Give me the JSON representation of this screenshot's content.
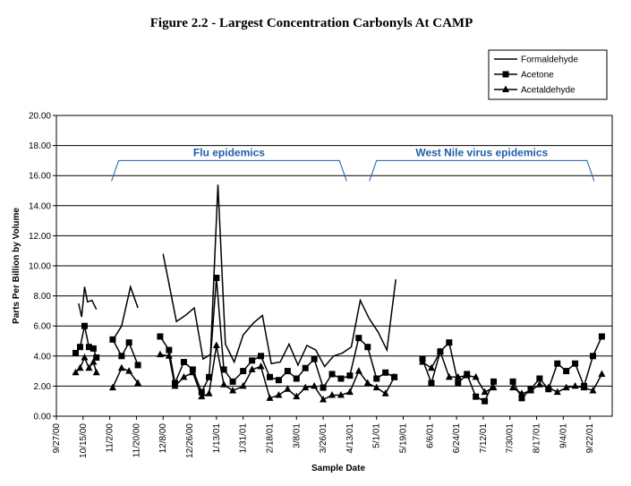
{
  "chart_data": {
    "type": "line",
    "title": "Figure 2.2 - Largest Concentration Carbonyls At CAMP",
    "xlabel": "Sample Date",
    "ylabel": "Parts Per Billion by Volume",
    "ylim": [
      0,
      20
    ],
    "yticks": [
      "0.00",
      "2.00",
      "4.00",
      "6.00",
      "8.00",
      "10.00",
      "12.00",
      "14.00",
      "16.00",
      "18.00",
      "20.00"
    ],
    "xlim": [
      "2000-09-27",
      "2001-10-07"
    ],
    "xticks": [
      {
        "label": "9/27/00",
        "date": "2000-09-27"
      },
      {
        "label": "10/15/00",
        "date": "2000-10-15"
      },
      {
        "label": "11/2/00",
        "date": "2000-11-02"
      },
      {
        "label": "11/20/00",
        "date": "2000-11-20"
      },
      {
        "label": "12/8/00",
        "date": "2000-12-08"
      },
      {
        "label": "12/26/00",
        "date": "2000-12-26"
      },
      {
        "label": "1/13/01",
        "date": "2001-01-13"
      },
      {
        "label": "1/31/01",
        "date": "2001-01-31"
      },
      {
        "label": "2/18/01",
        "date": "2001-02-18"
      },
      {
        "label": "3/8/01",
        "date": "2001-03-08"
      },
      {
        "label": "3/26/01",
        "date": "2001-03-26"
      },
      {
        "label": "4/13/01",
        "date": "2001-04-13"
      },
      {
        "label": "5/1/01",
        "date": "2001-05-01"
      },
      {
        "label": "5/19/01",
        "date": "2001-05-19"
      },
      {
        "label": "6/6/01",
        "date": "2001-06-06"
      },
      {
        "label": "6/24/01",
        "date": "2001-06-24"
      },
      {
        "label": "7/12/01",
        "date": "2001-07-12"
      },
      {
        "label": "7/30/01",
        "date": "2001-07-30"
      },
      {
        "label": "8/17/01",
        "date": "2001-08-17"
      },
      {
        "label": "9/4/01",
        "date": "2001-09-04"
      },
      {
        "label": "9/22/01",
        "date": "2001-09-22"
      }
    ],
    "grid": {
      "horizontal": true,
      "vertical": false
    },
    "legend": "top-right",
    "series": [
      {
        "name": "Formaldehyde",
        "marker": "none",
        "segments": [
          [
            [
              "2000-10-12",
              7.5
            ],
            [
              "2000-10-14",
              6.6
            ],
            [
              "2000-10-16",
              8.6
            ],
            [
              "2000-10-18",
              7.6
            ],
            [
              "2000-10-21",
              7.7
            ],
            [
              "2000-10-24",
              7.1
            ]
          ],
          [
            [
              "2000-11-05",
              5.2
            ],
            [
              "2000-11-10",
              6.0
            ],
            [
              "2000-11-16",
              8.6
            ],
            [
              "2000-11-21",
              7.2
            ]
          ],
          [
            [
              "2000-12-08",
              10.8
            ],
            [
              "2000-12-11",
              9.3
            ],
            [
              "2000-12-17",
              6.3
            ],
            [
              "2000-12-23",
              6.7
            ],
            [
              "2000-12-29",
              7.2
            ],
            [
              "2001-01-04",
              3.8
            ],
            [
              "2001-01-09",
              4.1
            ],
            [
              "2001-01-14",
              15.4
            ],
            [
              "2001-01-19",
              4.8
            ],
            [
              "2001-01-25",
              3.6
            ],
            [
              "2001-01-31",
              5.4
            ],
            [
              "2001-02-07",
              6.2
            ],
            [
              "2001-02-13",
              6.7
            ],
            [
              "2001-02-19",
              3.5
            ],
            [
              "2001-02-25",
              3.6
            ],
            [
              "2001-03-03",
              4.8
            ],
            [
              "2001-03-09",
              3.4
            ],
            [
              "2001-03-15",
              4.7
            ],
            [
              "2001-03-21",
              4.4
            ],
            [
              "2001-03-27",
              3.3
            ],
            [
              "2001-04-02",
              4.0
            ],
            [
              "2001-04-08",
              4.2
            ],
            [
              "2001-04-14",
              4.6
            ],
            [
              "2001-04-20",
              7.7
            ],
            [
              "2001-04-26",
              6.5
            ],
            [
              "2001-05-02",
              5.6
            ],
            [
              "2001-05-08",
              4.4
            ],
            [
              "2001-05-14",
              9.1
            ]
          ]
        ],
        "_comment": ""
      },
      {
        "name": "Acetone",
        "marker": "square",
        "segments": [
          [
            [
              "2000-10-10",
              4.2
            ],
            [
              "2000-10-13",
              4.6
            ],
            [
              "2000-10-16",
              6.0
            ],
            [
              "2000-10-19",
              4.6
            ],
            [
              "2000-10-22",
              4.5
            ],
            [
              "2000-10-24",
              3.9
            ]
          ],
          [
            [
              "2000-11-04",
              5.1
            ],
            [
              "2000-11-10",
              4.0
            ],
            [
              "2000-11-15",
              4.9
            ],
            [
              "2000-11-21",
              3.4
            ]
          ],
          [
            [
              "2000-12-06",
              5.3
            ],
            [
              "2000-12-12",
              4.4
            ],
            [
              "2000-12-16",
              2.2
            ],
            [
              "2000-12-22",
              3.6
            ],
            [
              "2000-12-28",
              3.1
            ],
            [
              "2001-01-03",
              1.6
            ],
            [
              "2001-01-08",
              2.6
            ],
            [
              "2001-01-13",
              9.2
            ],
            [
              "2001-01-18",
              3.1
            ],
            [
              "2001-01-24",
              2.3
            ],
            [
              "2001-01-31",
              3.0
            ],
            [
              "2001-02-06",
              3.7
            ],
            [
              "2001-02-12",
              4.0
            ],
            [
              "2001-02-18",
              2.6
            ],
            [
              "2001-02-24",
              2.4
            ],
            [
              "2001-03-02",
              3.0
            ],
            [
              "2001-03-08",
              2.5
            ],
            [
              "2001-03-14",
              3.2
            ],
            [
              "2001-03-20",
              3.8
            ],
            [
              "2001-03-26",
              1.9
            ],
            [
              "2001-04-01",
              2.8
            ],
            [
              "2001-04-07",
              2.5
            ],
            [
              "2001-04-13",
              2.7
            ],
            [
              "2001-04-19",
              5.2
            ],
            [
              "2001-04-25",
              4.6
            ],
            [
              "2001-05-01",
              2.5
            ],
            [
              "2001-05-07",
              2.9
            ],
            [
              "2001-05-13",
              2.6
            ]
          ],
          [
            [
              "2001-06-01",
              3.8
            ],
            [
              "2001-06-07",
              2.2
            ],
            [
              "2001-06-13",
              4.3
            ],
            [
              "2001-06-19",
              4.9
            ],
            [
              "2001-06-25",
              2.2
            ],
            [
              "2001-07-01",
              2.8
            ],
            [
              "2001-07-07",
              1.3
            ],
            [
              "2001-07-13",
              1.0
            ],
            [
              "2001-07-19",
              2.3
            ]
          ],
          [
            [
              "2001-08-01",
              2.3
            ],
            [
              "2001-08-07",
              1.2
            ],
            [
              "2001-08-13",
              1.8
            ],
            [
              "2001-08-19",
              2.5
            ],
            [
              "2001-08-25",
              1.8
            ],
            [
              "2001-08-31",
              3.5
            ],
            [
              "2001-09-06",
              3.0
            ],
            [
              "2001-09-12",
              3.5
            ],
            [
              "2001-09-18",
              2.0
            ],
            [
              "2001-09-24",
              4.0
            ],
            [
              "2001-09-30",
              5.3
            ]
          ]
        ]
      },
      {
        "name": "Acetaldehyde",
        "marker": "triangle",
        "segments": [
          [
            [
              "2000-10-10",
              2.9
            ],
            [
              "2000-10-13",
              3.2
            ],
            [
              "2000-10-16",
              3.9
            ],
            [
              "2000-10-19",
              3.2
            ],
            [
              "2000-10-22",
              3.6
            ],
            [
              "2000-10-24",
              2.9
            ]
          ],
          [
            [
              "2000-11-04",
              1.9
            ],
            [
              "2000-11-10",
              3.2
            ],
            [
              "2000-11-15",
              3.0
            ],
            [
              "2000-11-21",
              2.2
            ]
          ],
          [
            [
              "2000-12-06",
              4.1
            ],
            [
              "2000-12-12",
              4.0
            ],
            [
              "2000-12-16",
              2.0
            ],
            [
              "2000-12-22",
              2.6
            ],
            [
              "2000-12-28",
              2.9
            ],
            [
              "2001-01-03",
              1.3
            ],
            [
              "2001-01-08",
              1.5
            ],
            [
              "2001-01-13",
              4.7
            ],
            [
              "2001-01-18",
              2.1
            ],
            [
              "2001-01-24",
              1.7
            ],
            [
              "2001-01-31",
              2.0
            ],
            [
              "2001-02-06",
              3.1
            ],
            [
              "2001-02-12",
              3.3
            ],
            [
              "2001-02-18",
              1.2
            ],
            [
              "2001-02-24",
              1.4
            ],
            [
              "2001-03-02",
              1.8
            ],
            [
              "2001-03-08",
              1.3
            ],
            [
              "2001-03-14",
              1.9
            ],
            [
              "2001-03-20",
              2.0
            ],
            [
              "2001-03-26",
              1.1
            ],
            [
              "2001-04-01",
              1.4
            ],
            [
              "2001-04-07",
              1.4
            ],
            [
              "2001-04-13",
              1.6
            ],
            [
              "2001-04-19",
              3.0
            ],
            [
              "2001-04-25",
              2.2
            ],
            [
              "2001-05-01",
              1.9
            ],
            [
              "2001-05-07",
              1.5
            ],
            [
              "2001-05-13",
              2.6
            ]
          ],
          [
            [
              "2001-06-01",
              3.6
            ],
            [
              "2001-06-07",
              3.2
            ],
            [
              "2001-06-13",
              4.3
            ],
            [
              "2001-06-19",
              2.6
            ],
            [
              "2001-06-25",
              2.6
            ],
            [
              "2001-07-01",
              2.7
            ],
            [
              "2001-07-07",
              2.6
            ],
            [
              "2001-07-13",
              1.6
            ],
            [
              "2001-07-19",
              1.9
            ]
          ],
          [
            [
              "2001-08-01",
              1.9
            ],
            [
              "2001-08-07",
              1.5
            ],
            [
              "2001-08-13",
              1.7
            ],
            [
              "2001-08-19",
              2.1
            ],
            [
              "2001-08-25",
              1.9
            ],
            [
              "2001-08-31",
              1.6
            ],
            [
              "2001-09-06",
              1.9
            ],
            [
              "2001-09-12",
              2.0
            ],
            [
              "2001-09-18",
              1.9
            ],
            [
              "2001-09-24",
              1.7
            ],
            [
              "2001-09-30",
              2.8
            ]
          ]
        ]
      }
    ],
    "annotations": [
      {
        "text": "Flu epidemics",
        "from": "2000-11-08",
        "to": "2001-04-06",
        "y": 17.0
      },
      {
        "text": "West Nile virus epidemics",
        "from": "2001-05-01",
        "to": "2001-09-20",
        "y": 17.0
      }
    ]
  }
}
